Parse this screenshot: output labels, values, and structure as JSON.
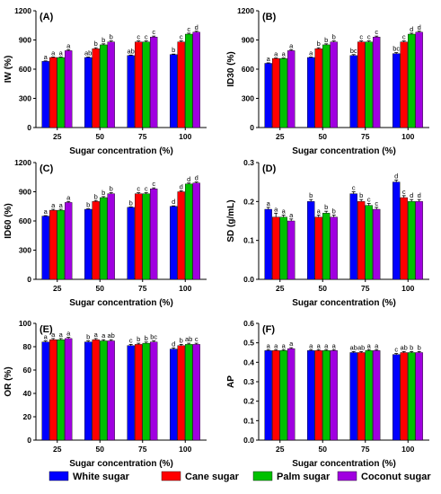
{
  "series_colors": [
    "#0000ff",
    "#ff0000",
    "#00c000",
    "#a000e0"
  ],
  "legend": [
    "White sugar",
    "Cane sugar",
    "Palm sugar",
    "Coconut sugar"
  ],
  "chart_data": [
    {
      "type": "bar",
      "panel": "(A)",
      "ylabel": "IW (%)",
      "xlabel": "Sugar concentration (%)",
      "categories": [
        "25",
        "50",
        "75",
        "100"
      ],
      "ylim": [
        0,
        1200
      ],
      "yticks": [
        0,
        300,
        600,
        900,
        1200
      ],
      "series": [
        {
          "name": "White sugar",
          "values": [
            680,
            720,
            740,
            750
          ],
          "errors": [
            5,
            5,
            5,
            5
          ],
          "letters": [
            "a",
            "ab",
            "ab",
            "b"
          ]
        },
        {
          "name": "Cane sugar",
          "values": [
            720,
            810,
            880,
            880
          ],
          "errors": [
            5,
            10,
            10,
            10
          ],
          "letters": [
            "a",
            "b",
            "c",
            "c"
          ]
        },
        {
          "name": "Palm sugar",
          "values": [
            720,
            850,
            880,
            960
          ],
          "errors": [
            5,
            10,
            10,
            10
          ],
          "letters": [
            "a",
            "b",
            "c",
            "c"
          ]
        },
        {
          "name": "Coconut sugar",
          "values": [
            790,
            880,
            930,
            980
          ],
          "errors": [
            10,
            10,
            10,
            10
          ],
          "letters": [
            "a",
            "b",
            "c",
            "d"
          ]
        }
      ]
    },
    {
      "type": "bar",
      "panel": "(B)",
      "ylabel": "ID30 (%)",
      "xlabel": "Sugar concentration (%)",
      "categories": [
        "25",
        "50",
        "75",
        "100"
      ],
      "ylim": [
        0,
        1200
      ],
      "yticks": [
        0,
        300,
        600,
        900,
        1200
      ],
      "series": [
        {
          "name": "White sugar",
          "values": [
            660,
            720,
            740,
            760
          ],
          "errors": [
            5,
            5,
            10,
            10
          ],
          "letters": [
            "a",
            "a",
            "bc",
            "bc"
          ]
        },
        {
          "name": "Cane sugar",
          "values": [
            710,
            810,
            880,
            880
          ],
          "errors": [
            5,
            10,
            10,
            10
          ],
          "letters": [
            "a",
            "b",
            "c",
            "c"
          ]
        },
        {
          "name": "Palm sugar",
          "values": [
            710,
            850,
            880,
            960
          ],
          "errors": [
            5,
            10,
            10,
            10
          ],
          "letters": [
            "a",
            "b",
            "c",
            "d"
          ]
        },
        {
          "name": "Coconut sugar",
          "values": [
            790,
            880,
            930,
            980
          ],
          "errors": [
            10,
            10,
            10,
            10
          ],
          "letters": [
            "a",
            "b",
            "c",
            "d"
          ]
        }
      ]
    },
    {
      "type": "bar",
      "panel": "(C)",
      "ylabel": "ID60 (%)",
      "xlabel": "Sugar concentration (%)",
      "categories": [
        "25",
        "50",
        "75",
        "100"
      ],
      "ylim": [
        0,
        1200
      ],
      "yticks": [
        0,
        300,
        600,
        900,
        1200
      ],
      "series": [
        {
          "name": "White sugar",
          "values": [
            650,
            720,
            740,
            750
          ],
          "errors": [
            5,
            5,
            5,
            5
          ],
          "letters": [
            "a",
            "b",
            "b",
            "d"
          ]
        },
        {
          "name": "Cane sugar",
          "values": [
            710,
            800,
            880,
            900
          ],
          "errors": [
            10,
            10,
            10,
            10
          ],
          "letters": [
            "a",
            "b",
            "c",
            "d"
          ]
        },
        {
          "name": "Palm sugar",
          "values": [
            710,
            840,
            880,
            980
          ],
          "errors": [
            10,
            10,
            10,
            10
          ],
          "letters": [
            "a",
            "b",
            "c",
            "d"
          ]
        },
        {
          "name": "Coconut sugar",
          "values": [
            790,
            880,
            930,
            990
          ],
          "errors": [
            10,
            10,
            10,
            10
          ],
          "letters": [
            "a",
            "b",
            "c",
            "d"
          ]
        }
      ]
    },
    {
      "type": "bar",
      "panel": "(D)",
      "ylabel": "SD (g/mL)",
      "xlabel": "Sugar concentration (%)",
      "categories": [
        "25",
        "50",
        "75",
        "100"
      ],
      "ylim": [
        0,
        0.3
      ],
      "yticks": [
        0.0,
        0.1,
        0.2,
        0.3
      ],
      "series": [
        {
          "name": "White sugar",
          "values": [
            0.18,
            0.2,
            0.22,
            0.25
          ],
          "errors": [
            0.005,
            0.005,
            0.005,
            0.005
          ],
          "letters": [
            "a",
            "b",
            "c",
            "d"
          ]
        },
        {
          "name": "Cane sugar",
          "values": [
            0.16,
            0.16,
            0.2,
            0.21
          ],
          "errors": [
            0.01,
            0.005,
            0.005,
            0.005
          ],
          "letters": [
            "a",
            "a",
            "b",
            "c"
          ]
        },
        {
          "name": "Palm sugar",
          "values": [
            0.16,
            0.17,
            0.19,
            0.2
          ],
          "errors": [
            0.005,
            0.005,
            0.005,
            0.005
          ],
          "letters": [
            "a",
            "b",
            "c",
            "d"
          ]
        },
        {
          "name": "Coconut sugar",
          "values": [
            0.15,
            0.16,
            0.18,
            0.2
          ],
          "errors": [
            0.005,
            0.005,
            0.005,
            0.005
          ],
          "letters": [
            "a",
            "b",
            "c",
            "d"
          ]
        }
      ]
    },
    {
      "type": "bar",
      "panel": "(E)",
      "ylabel": "OR (%)",
      "xlabel": "Sugar concentration (%)",
      "categories": [
        "25",
        "50",
        "75",
        "100"
      ],
      "ylim": [
        0,
        100
      ],
      "yticks": [
        0,
        20,
        40,
        60,
        80,
        100
      ],
      "series": [
        {
          "name": "White sugar",
          "values": [
            84,
            84,
            81,
            78
          ],
          "errors": [
            1,
            1,
            1,
            1
          ],
          "letters": [
            "a",
            "b",
            "c",
            "d"
          ]
        },
        {
          "name": "Cane sugar",
          "values": [
            86,
            86,
            82,
            81
          ],
          "errors": [
            1,
            1,
            1,
            1
          ],
          "letters": [
            "a",
            "a",
            "b",
            "b"
          ]
        },
        {
          "name": "Palm sugar",
          "values": [
            86,
            85,
            83,
            82
          ],
          "errors": [
            1,
            1,
            1,
            1
          ],
          "letters": [
            "a",
            "a",
            "b",
            "ab"
          ]
        },
        {
          "name": "Coconut sugar",
          "values": [
            87,
            85,
            84,
            82
          ],
          "errors": [
            1,
            1,
            1,
            1
          ],
          "letters": [
            "a",
            "ab",
            "bc",
            "c"
          ]
        }
      ]
    },
    {
      "type": "bar",
      "panel": "(F)",
      "ylabel": "AP",
      "xlabel": "Sugar concentration (%)",
      "categories": [
        "25",
        "50",
        "75",
        "100"
      ],
      "ylim": [
        0,
        0.6
      ],
      "yticks": [
        0.0,
        0.1,
        0.2,
        0.3,
        0.4,
        0.5,
        0.6
      ],
      "series": [
        {
          "name": "White sugar",
          "values": [
            0.46,
            0.46,
            0.45,
            0.44
          ],
          "errors": [
            0.005,
            0.005,
            0.005,
            0.005
          ],
          "letters": [
            "a",
            "a",
            "ab",
            "c"
          ]
        },
        {
          "name": "Cane sugar",
          "values": [
            0.46,
            0.46,
            0.45,
            0.45
          ],
          "errors": [
            0.005,
            0.005,
            0.005,
            0.005
          ],
          "letters": [
            "a",
            "a",
            "ab",
            "ab"
          ]
        },
        {
          "name": "Palm sugar",
          "values": [
            0.46,
            0.46,
            0.46,
            0.45
          ],
          "errors": [
            0.005,
            0.005,
            0.005,
            0.005
          ],
          "letters": [
            "a",
            "a",
            "a",
            "b"
          ]
        },
        {
          "name": "Coconut sugar",
          "values": [
            0.47,
            0.46,
            0.46,
            0.45
          ],
          "errors": [
            0.005,
            0.005,
            0.005,
            0.005
          ],
          "letters": [
            "a",
            "a",
            "a",
            "b"
          ]
        }
      ]
    }
  ]
}
